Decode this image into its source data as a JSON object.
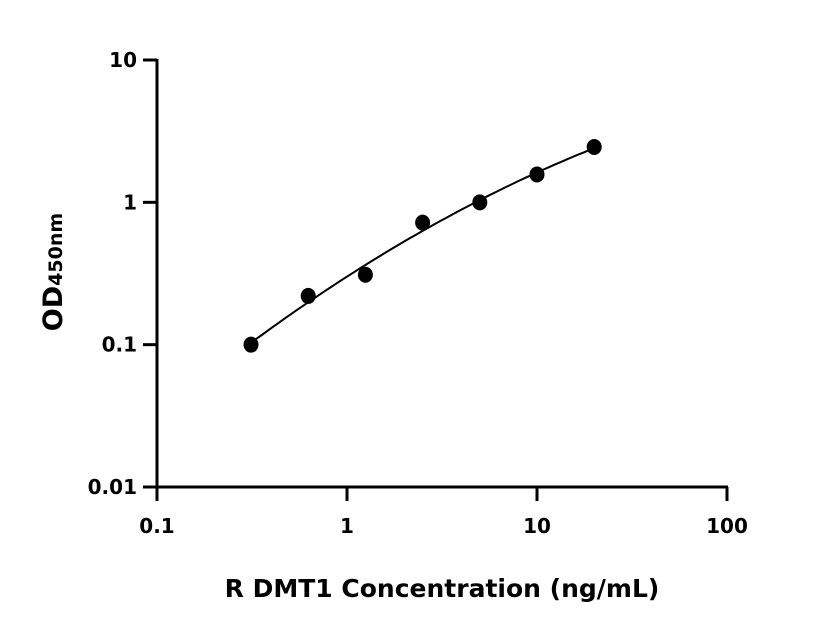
{
  "chart_data": {
    "type": "scatter",
    "title": "",
    "xlabel": "R DMT1 Concentration (ng/mL)",
    "ylabel": "OD",
    "ylabel_subscript": "450nm",
    "x_scale": "log",
    "y_scale": "log",
    "xlim": [
      0.1,
      100
    ],
    "ylim": [
      0.01,
      10
    ],
    "x_ticks": [
      "0.1",
      "1",
      "10",
      "100"
    ],
    "y_ticks": [
      "0.01",
      "0.1",
      "1",
      "10"
    ],
    "grid": false,
    "fit_curve": true,
    "marker_color": "#000000",
    "points": [
      {
        "x": 0.3125,
        "y": 0.1
      },
      {
        "x": 0.625,
        "y": 0.22
      },
      {
        "x": 1.25,
        "y": 0.31
      },
      {
        "x": 2.5,
        "y": 0.72
      },
      {
        "x": 5,
        "y": 1.0
      },
      {
        "x": 10,
        "y": 1.57
      },
      {
        "x": 20,
        "y": 2.45
      }
    ]
  }
}
